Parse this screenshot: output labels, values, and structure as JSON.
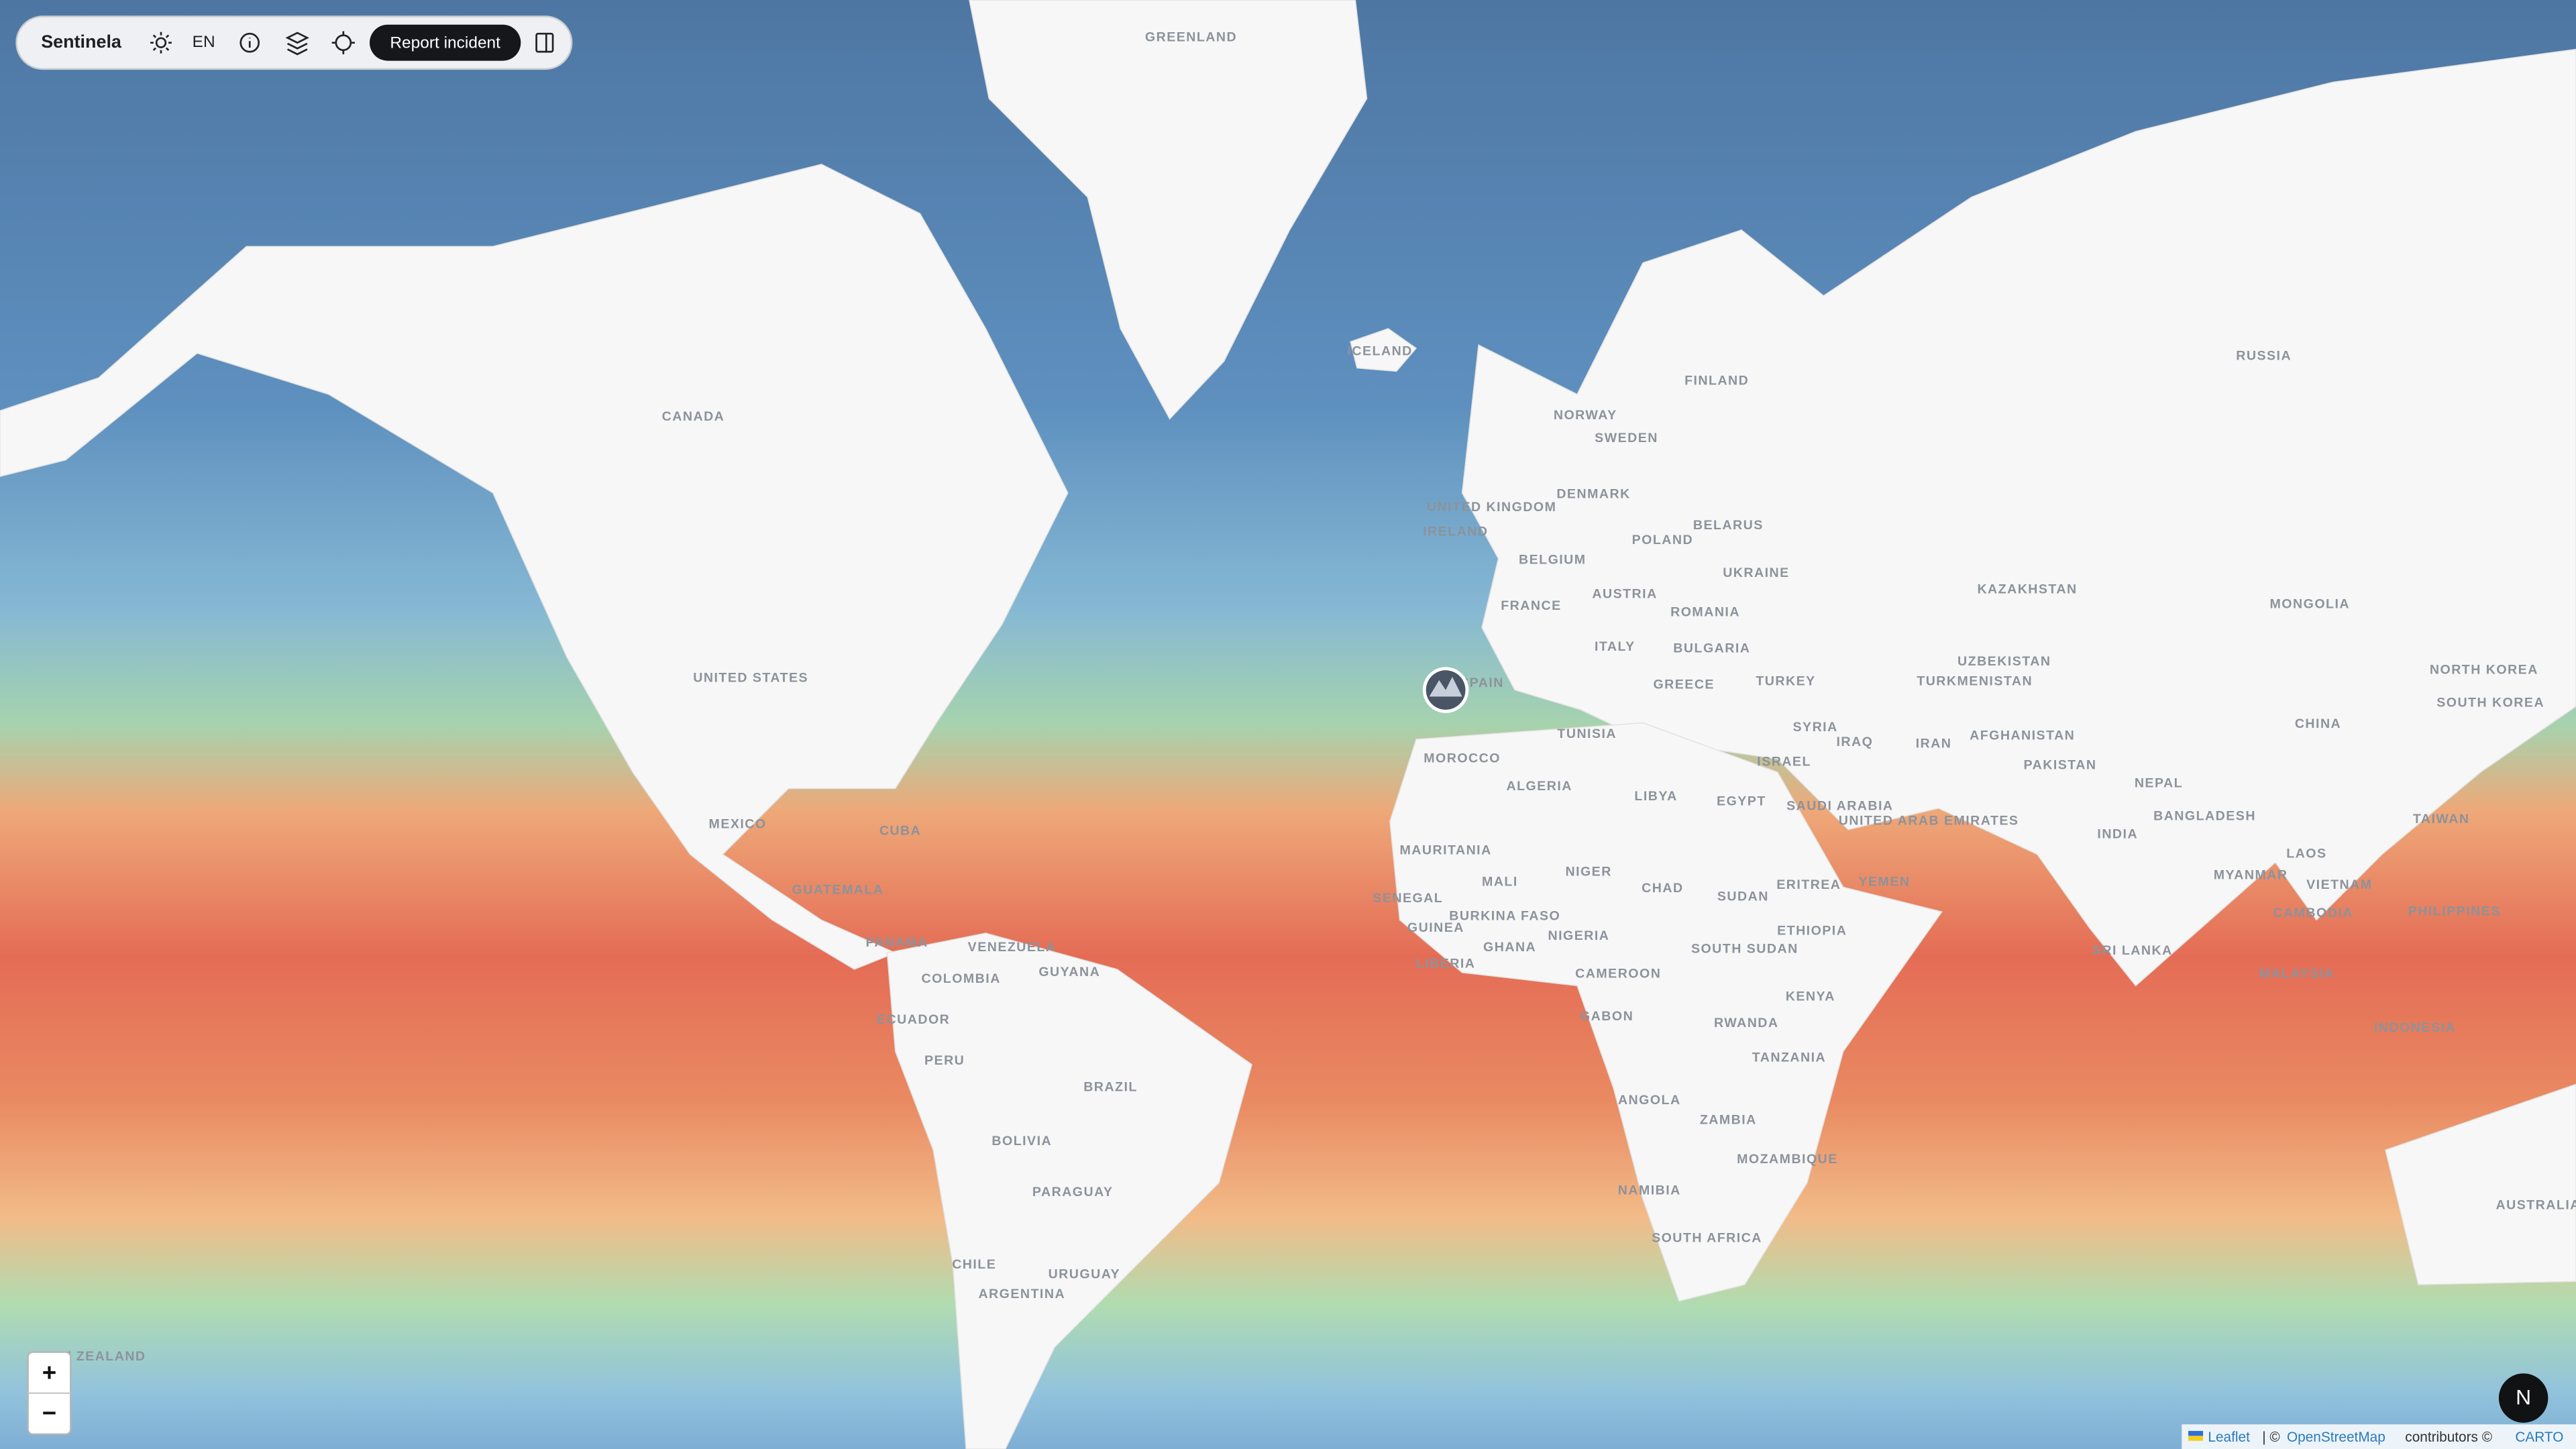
{
  "toolbar": {
    "app_name": "Sentinela",
    "language": "EN",
    "report_button": "Report incident"
  },
  "zoom": {
    "in": "+",
    "out": "−"
  },
  "user_avatar": "N",
  "attribution": {
    "leaflet": "Leaflet",
    "sep": "| ©",
    "osm": "OpenStreetMap",
    "contrib": "contributors ©",
    "carto": "CARTO"
  },
  "map_labels": [
    "GREENLAND",
    "ICELAND",
    "CANADA",
    "FINLAND",
    "NORWAY",
    "SWEDEN",
    "RUSSIA",
    "UNITED KINGDOM",
    "IRELAND",
    "DENMARK",
    "BELARUS",
    "POLAND",
    "BELGIUM",
    "UKRAINE",
    "KAZAKHSTAN",
    "MONGOLIA",
    "FRANCE",
    "AUSTRIA",
    "ROMANIA",
    "BULGARIA",
    "ITALY",
    "UNITED STATES",
    "SPAIN",
    "GREECE",
    "TURKEY",
    "UZBEKISTAN",
    "TURKMENISTAN",
    "CHINA",
    "TUNISIA",
    "SYRIA",
    "IRAQ",
    "IRAN",
    "AFGHANISTAN",
    "MOROCCO",
    "ISRAEL",
    "PAKISTAN",
    "NEPAL",
    "ALGERIA",
    "LIBYA",
    "EGYPT",
    "SAUDI ARABIA",
    "MEXICO",
    "BANGLADESH",
    "UNITED ARAB EMIRATES",
    "INDIA",
    "TAIWAN",
    "CUBA",
    "MAURITANIA",
    "LAOS",
    "MALI",
    "NIGER",
    "CHAD",
    "MYANMAR",
    "GUATEMALA",
    "ERITREA",
    "YEMEN",
    "VIETNAM",
    "SUDAN",
    "SENEGAL",
    "BURKINA FASO",
    "PHILIPPINES",
    "CAMBODIA",
    "GUINEA",
    "ETHIOPIA",
    "NIGERIA",
    "GHANA",
    "SOUTH SUDAN",
    "VENEZUELA",
    "PANAMA",
    "SRI LANKA",
    "LIBERIA",
    "GUYANA",
    "COLOMBIA",
    "CAMEROON",
    "MALAYSIA",
    "KENYA",
    "GABON",
    "ECUADOR",
    "RWANDA",
    "INDONESIA",
    "TANZANIA",
    "PERU",
    "BRAZIL",
    "ANGOLA",
    "ZAMBIA",
    "BOLIVIA",
    "MOZAMBIQUE",
    "NAMIBIA",
    "PARAGUAY",
    "AUSTRALIA",
    "SOUTH AFRICA",
    "CHILE",
    "URUGUAY",
    "ARGENTINA",
    "NORTH KOREA",
    "SOUTH KOREA",
    "NEW ZEALAND"
  ]
}
